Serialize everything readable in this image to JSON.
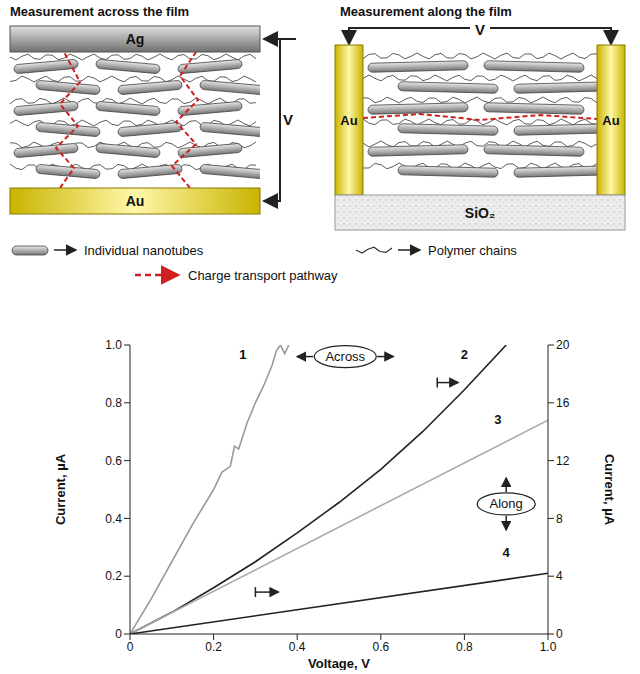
{
  "diagrams": [
    {
      "title": "Measurement across the film",
      "top_electrode": "Ag",
      "bottom_electrode": "Au",
      "voltage": "V"
    },
    {
      "title": "Measurement along the film",
      "left_electrode": "Au",
      "right_electrode": "Au",
      "substrate": "SiO₂",
      "voltage": "V"
    }
  ],
  "legend_items": {
    "nanotubes": "Individual nanotubes",
    "polymer": "Polymer chains",
    "pathway": "Charge transport pathway"
  },
  "chart_data": {
    "type": "line",
    "xlabel": "Voltage, V",
    "ylabel": "Current, µA",
    "y2label": "Current, µA",
    "xlim": [
      0,
      1
    ],
    "xticks": [
      0,
      0.2,
      0.4,
      0.6,
      0.8,
      {
        "value": 1,
        "label": "1.0"
      }
    ],
    "ylim": [
      0,
      1
    ],
    "yticks": [
      0,
      0.2,
      0.4,
      0.6,
      0.8,
      {
        "value": 1,
        "label": "1.0"
      }
    ],
    "y2lim": [
      0,
      20
    ],
    "y2ticks": [
      0,
      4,
      8,
      12,
      16,
      20
    ],
    "annotations": [
      "Across",
      "Along"
    ],
    "series": [
      {
        "name": "1",
        "color": "#9a9a9a",
        "axis": "y",
        "x": [
          0,
          0.05,
          0.1,
          0.15,
          0.2,
          0.22,
          0.24,
          0.25,
          0.26,
          0.28,
          0.3,
          0.32,
          0.34,
          0.35,
          0.36,
          0.37,
          0.38
        ],
        "values": [
          0,
          0.12,
          0.25,
          0.38,
          0.5,
          0.56,
          0.58,
          0.65,
          0.64,
          0.73,
          0.8,
          0.86,
          0.93,
          0.98,
          1.0,
          0.97,
          1.0
        ]
      },
      {
        "name": "2",
        "color": "#222222",
        "axis": "y2",
        "x": [
          0,
          0.1,
          0.2,
          0.3,
          0.4,
          0.5,
          0.6,
          0.7,
          0.8,
          0.9
        ],
        "values": [
          0,
          1.5,
          3.2,
          5.0,
          7.0,
          9.1,
          11.4,
          14.0,
          16.9,
          20.0
        ]
      },
      {
        "name": "3",
        "color": "#aaaaaa",
        "axis": "y2",
        "x": [
          0,
          1
        ],
        "values": [
          0,
          14.8
        ]
      },
      {
        "name": "4",
        "color": "#222222",
        "axis": "y2",
        "x": [
          0,
          1
        ],
        "values": [
          0,
          4.2
        ]
      }
    ]
  }
}
